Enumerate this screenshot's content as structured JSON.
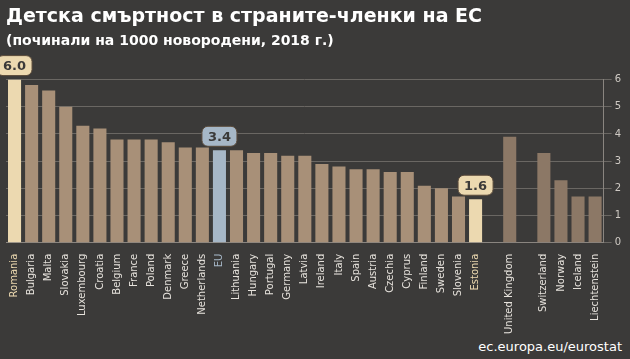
{
  "chart_data": {
    "type": "bar",
    "title": "Детска смъртност в страните-членки на ЕС",
    "subtitle": "(починали на 1000 новородени, 2018 г.)",
    "source": "ec.europa.eu/eurostat",
    "categories": [
      "Romania",
      "Bulgaria",
      "Malta",
      "Slovakia",
      "Luxembourg",
      "Croatia",
      "Belgium",
      "France",
      "Poland",
      "Denmark",
      "Greece",
      "Netherlands",
      "EU",
      "Lithuania",
      "Hungary",
      "Portugal",
      "Germany",
      "Latvia",
      "Ireland",
      "Italy",
      "Spain",
      "Austria",
      "Czechia",
      "Cyprus",
      "Finland",
      "Sweden",
      "Slovenia",
      "Estonia",
      null,
      "United Kingdom",
      null,
      "Switzerland",
      "Norway",
      "Iceland",
      "Liechtenstein"
    ],
    "values": [
      6.0,
      5.8,
      5.6,
      5.0,
      4.3,
      4.2,
      3.8,
      3.8,
      3.8,
      3.7,
      3.5,
      3.5,
      3.4,
      3.4,
      3.3,
      3.3,
      3.2,
      3.2,
      2.9,
      2.8,
      2.7,
      2.7,
      2.6,
      2.6,
      2.1,
      2.0,
      1.7,
      1.6,
      null,
      3.9,
      null,
      3.3,
      2.3,
      1.7,
      1.7
    ],
    "colors": [
      "#ecd9b0",
      "#a89078",
      "#a89078",
      "#a89078",
      "#a89078",
      "#a89078",
      "#a89078",
      "#a89078",
      "#a89078",
      "#a89078",
      "#a89078",
      "#a89078",
      "#a6b7c7",
      "#a89078",
      "#a89078",
      "#a89078",
      "#a89078",
      "#a89078",
      "#a89078",
      "#a89078",
      "#a89078",
      "#a89078",
      "#a89078",
      "#a89078",
      "#a89078",
      "#a89078",
      "#a89078",
      "#ecd9b0",
      null,
      "#8c7866",
      null,
      "#8c7866",
      "#8c7866",
      "#8c7866",
      "#8c7866"
    ],
    "annotations": [
      {
        "category": "Romania",
        "text": "6.0"
      },
      {
        "category": "EU",
        "text": "3.4"
      },
      {
        "category": "Estonia",
        "text": "1.6"
      }
    ],
    "ylim": [
      0,
      6
    ],
    "yticks": [
      0,
      1,
      2,
      3,
      4,
      5,
      6
    ],
    "grid": true
  }
}
